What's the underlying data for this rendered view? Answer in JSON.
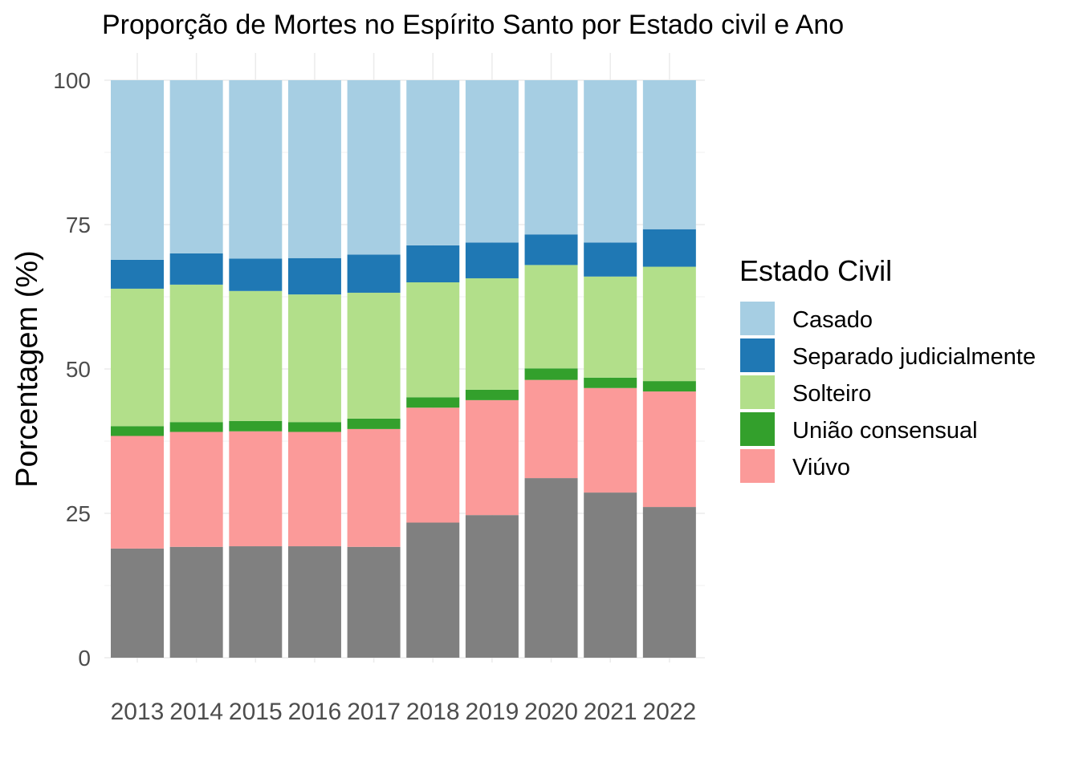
{
  "chart_data": {
    "type": "bar",
    "stacked": true,
    "title": "Proporção de Mortes no Espírito Santo por Estado civil e Ano",
    "xlabel": "",
    "ylabel": "Porcentagem (%)",
    "ylim": [
      0,
      100
    ],
    "yticks": [
      0,
      25,
      50,
      75,
      100
    ],
    "grid": true,
    "legend_title": "Estado Civil",
    "legend_position": "right",
    "categories": [
      "2013",
      "2014",
      "2015",
      "2016",
      "2017",
      "2018",
      "2019",
      "2020",
      "2021",
      "2022"
    ],
    "series": [
      {
        "name": "Casado",
        "color": "#A6CEE3",
        "values": [
          31.1,
          30.0,
          30.9,
          30.8,
          30.2,
          28.6,
          28.1,
          26.7,
          28.1,
          25.8
        ]
      },
      {
        "name": "Separado judicialmente",
        "color": "#1F78B4",
        "values": [
          5.0,
          5.4,
          5.6,
          6.3,
          6.6,
          6.4,
          6.2,
          5.3,
          5.9,
          6.5
        ]
      },
      {
        "name": "Solteiro",
        "color": "#B2DF8A",
        "values": [
          23.8,
          23.8,
          22.5,
          22.1,
          21.8,
          19.9,
          19.3,
          17.9,
          17.5,
          19.8
        ]
      },
      {
        "name": "União consensual",
        "color": "#33A02C",
        "values": [
          1.7,
          1.7,
          1.8,
          1.7,
          1.8,
          1.8,
          1.8,
          2.0,
          1.8,
          1.8
        ]
      },
      {
        "name": "Viúvo",
        "color": "#FB9A99",
        "values": [
          19.5,
          19.9,
          19.9,
          19.8,
          20.4,
          19.9,
          19.9,
          17.0,
          18.1,
          20.0
        ]
      },
      {
        "name": "",
        "color": "#808080",
        "values": [
          18.9,
          19.2,
          19.3,
          19.3,
          19.2,
          23.4,
          24.7,
          31.1,
          28.6,
          26.1
        ]
      }
    ]
  }
}
